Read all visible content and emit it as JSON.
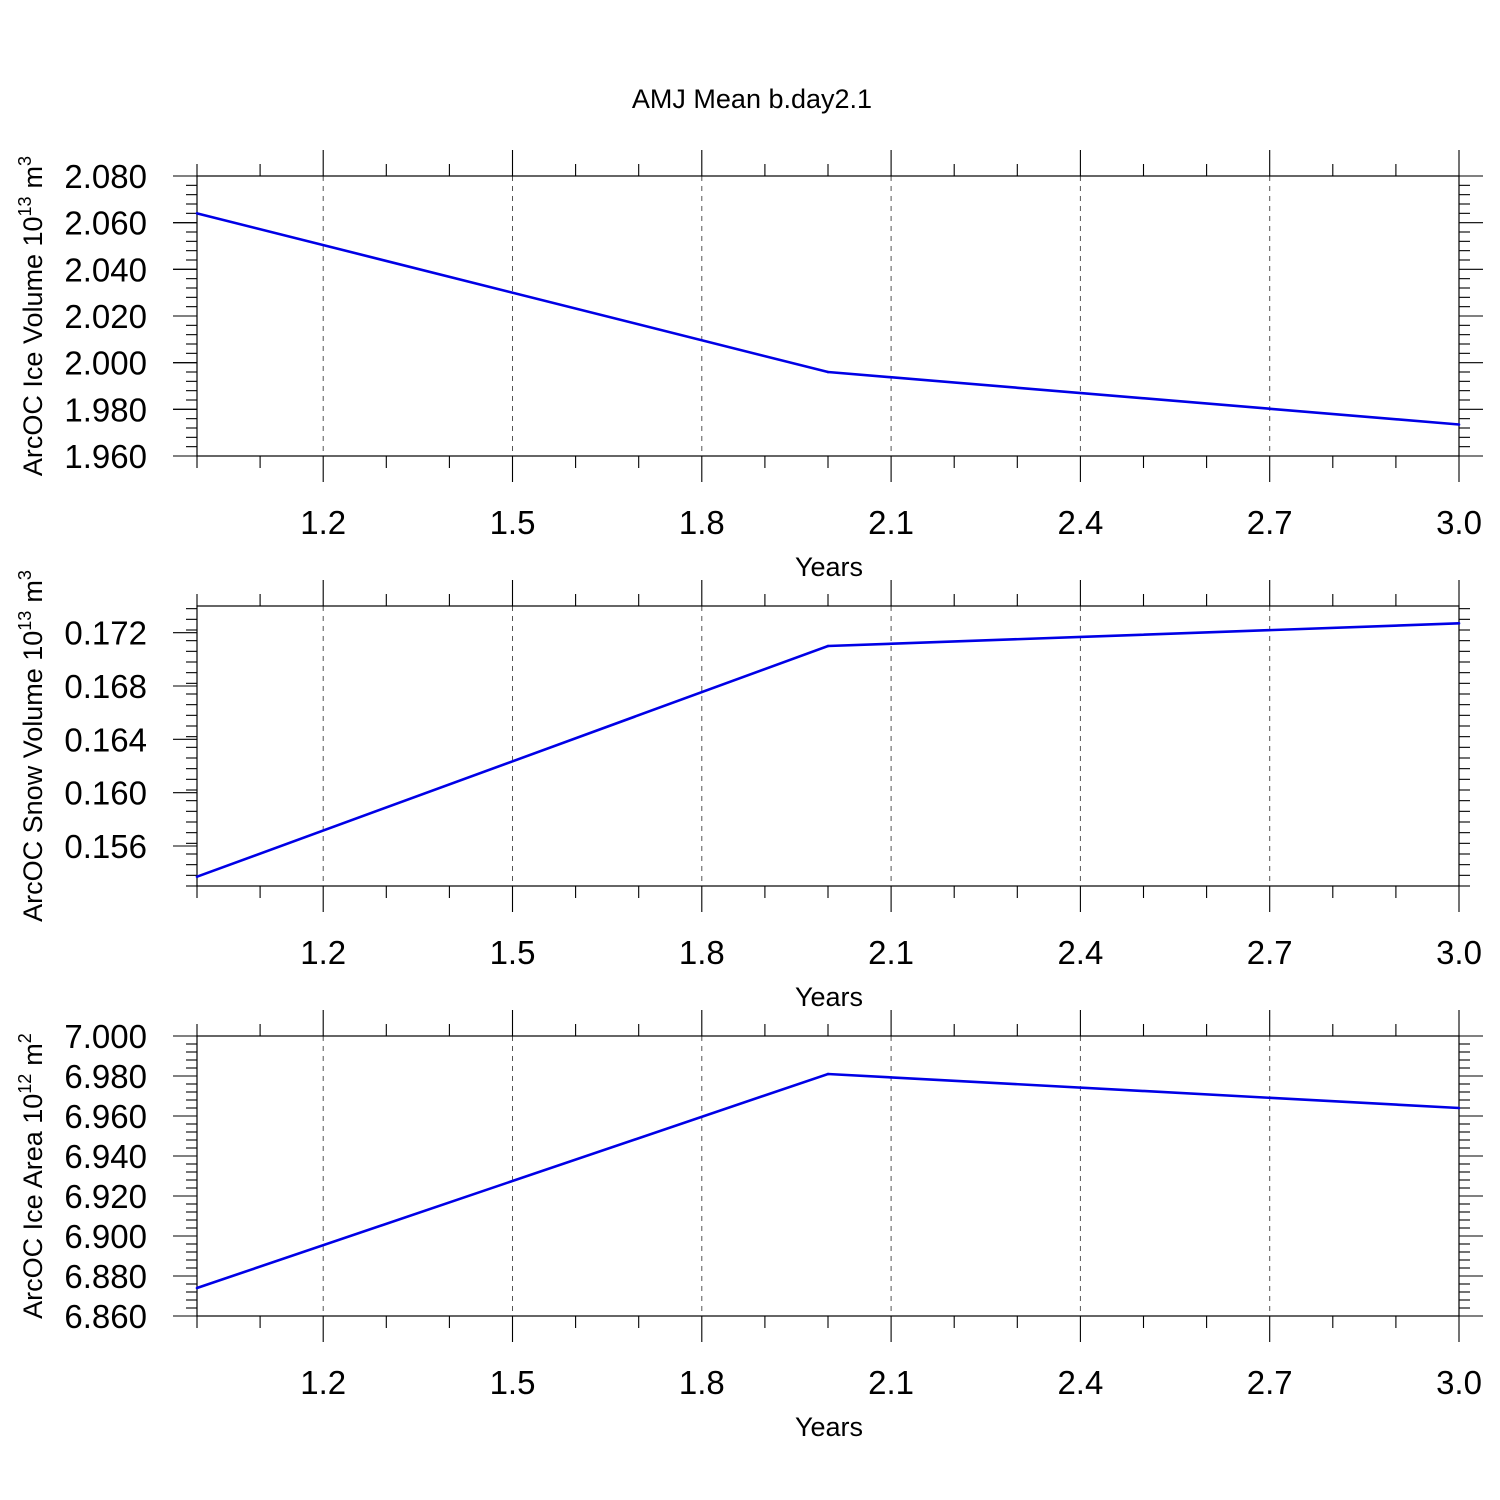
{
  "title": "AMJ Mean b.day2.1",
  "colors": {
    "line": "#0000e6",
    "frame": "#000000",
    "grid": "#555555"
  },
  "chart_data": [
    {
      "type": "line",
      "xlabel": "Years",
      "ylabel": "ArcOC Ice Volume 10",
      "ylabel_exp": "13",
      "ylabel_unit": "m",
      "ylabel_unit_exp": "3",
      "xlim": [
        1.0,
        3.0
      ],
      "ylim": [
        1.96,
        2.08
      ],
      "x_ticks": [
        1.2,
        1.5,
        1.8,
        2.1,
        2.4,
        2.7,
        3.0
      ],
      "x_tick_labels": [
        "1.2",
        "1.5",
        "1.8",
        "2.1",
        "2.4",
        "2.7",
        "3.0"
      ],
      "y_ticks": [
        1.96,
        1.98,
        2.0,
        2.02,
        2.04,
        2.06,
        2.08
      ],
      "y_tick_labels": [
        "1.960",
        "1.980",
        "2.000",
        "2.020",
        "2.040",
        "2.060",
        "2.080"
      ],
      "y_minor_step": 0.004,
      "x": [
        1.0,
        2.0,
        3.0
      ],
      "y": [
        2.064,
        1.996,
        1.9735
      ],
      "grid": "x-dashed"
    },
    {
      "type": "line",
      "xlabel": "Years",
      "ylabel": "ArcOC Snow Volume 10",
      "ylabel_exp": "13",
      "ylabel_unit": "m",
      "ylabel_unit_exp": "3",
      "xlim": [
        1.0,
        3.0
      ],
      "ylim": [
        0.153,
        0.174
      ],
      "x_ticks": [
        1.2,
        1.5,
        1.8,
        2.1,
        2.4,
        2.7,
        3.0
      ],
      "x_tick_labels": [
        "1.2",
        "1.5",
        "1.8",
        "2.1",
        "2.4",
        "2.7",
        "3.0"
      ],
      "y_ticks": [
        0.156,
        0.16,
        0.164,
        0.168,
        0.172
      ],
      "y_tick_labels": [
        "0.156",
        "0.160",
        "0.164",
        "0.168",
        "0.172"
      ],
      "y_minor_step": 0.0008,
      "x": [
        1.0,
        2.0,
        3.0
      ],
      "y": [
        0.1537,
        0.171,
        0.1727
      ],
      "grid": "x-dashed"
    },
    {
      "type": "line",
      "xlabel": "Years",
      "ylabel": "ArcOC Ice Area 10",
      "ylabel_exp": "12",
      "ylabel_unit": "m",
      "ylabel_unit_exp": "2",
      "xlim": [
        1.0,
        3.0
      ],
      "ylim": [
        6.86,
        7.0
      ],
      "x_ticks": [
        1.2,
        1.5,
        1.8,
        2.1,
        2.4,
        2.7,
        3.0
      ],
      "x_tick_labels": [
        "1.2",
        "1.5",
        "1.8",
        "2.1",
        "2.4",
        "2.7",
        "3.0"
      ],
      "y_ticks": [
        6.86,
        6.88,
        6.9,
        6.92,
        6.94,
        6.96,
        6.98,
        7.0
      ],
      "y_tick_labels": [
        "6.860",
        "6.880",
        "6.900",
        "6.920",
        "6.940",
        "6.960",
        "6.980",
        "7.000"
      ],
      "y_minor_step": 0.004,
      "x": [
        1.0,
        2.0,
        3.0
      ],
      "y": [
        6.874,
        6.981,
        6.964
      ],
      "grid": "x-dashed"
    }
  ]
}
